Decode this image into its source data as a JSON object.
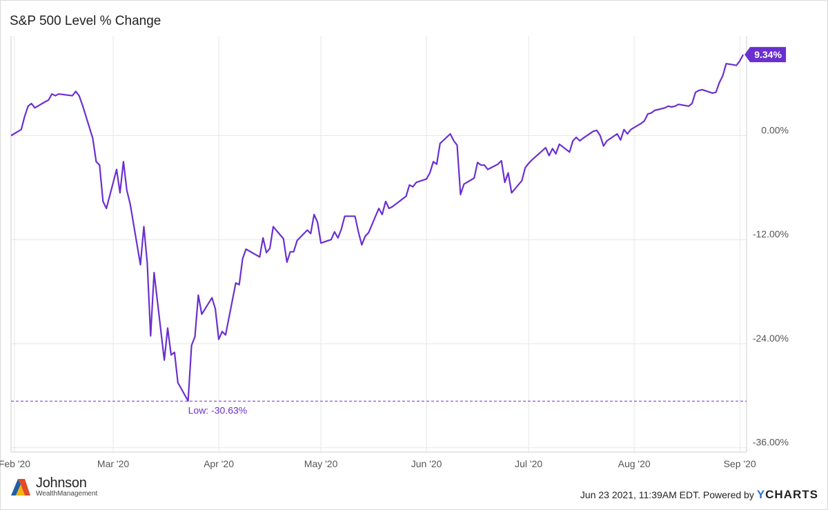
{
  "title": "S&P 500 Level % Change",
  "colors": {
    "line": "#6a2fcf",
    "grid": "#e6e6e6",
    "label_bg": "#6a2fcf"
  },
  "chart_data": {
    "type": "line",
    "title": "S&P 500 Level % Change",
    "xlabel": "",
    "ylabel": "",
    "x_tick_labels": [
      "Feb '20",
      "Mar '20",
      "Apr '20",
      "May '20",
      "Jun '20",
      "Jul '20",
      "Aug '20",
      "Sep '20"
    ],
    "x_ticks": [
      "2020-02-01",
      "2020-03-01",
      "2020-04-01",
      "2020-05-01",
      "2020-06-01",
      "2020-07-01",
      "2020-08-01",
      "2020-09-01"
    ],
    "y_ticks": [
      0,
      -12,
      -24,
      -36
    ],
    "y_tick_labels": [
      "0.00%",
      "-12.00%",
      "-24.00%",
      "-36.00%"
    ],
    "ylim": [
      -36.5,
      11.5
    ],
    "xlim": [
      "2020-01-31",
      "2020-09-03"
    ],
    "grid": true,
    "series": [
      {
        "x": [
          "2020-01-31",
          "2020-02-03",
          "2020-02-04",
          "2020-02-05",
          "2020-02-06",
          "2020-02-07",
          "2020-02-10",
          "2020-02-11",
          "2020-02-12",
          "2020-02-13",
          "2020-02-14",
          "2020-02-18",
          "2020-02-19",
          "2020-02-20",
          "2020-02-21",
          "2020-02-24",
          "2020-02-25",
          "2020-02-26",
          "2020-02-27",
          "2020-02-28",
          "2020-03-02",
          "2020-03-03",
          "2020-03-04",
          "2020-03-05",
          "2020-03-06",
          "2020-03-09",
          "2020-03-10",
          "2020-03-11",
          "2020-03-12",
          "2020-03-13",
          "2020-03-16",
          "2020-03-17",
          "2020-03-18",
          "2020-03-19",
          "2020-03-20",
          "2020-03-23",
          "2020-03-24",
          "2020-03-25",
          "2020-03-26",
          "2020-03-27",
          "2020-03-30",
          "2020-03-31",
          "2020-04-01",
          "2020-04-02",
          "2020-04-03",
          "2020-04-06",
          "2020-04-07",
          "2020-04-08",
          "2020-04-09",
          "2020-04-13",
          "2020-04-14",
          "2020-04-15",
          "2020-04-16",
          "2020-04-17",
          "2020-04-20",
          "2020-04-21",
          "2020-04-22",
          "2020-04-23",
          "2020-04-24",
          "2020-04-27",
          "2020-04-28",
          "2020-04-29",
          "2020-04-30",
          "2020-05-01",
          "2020-05-04",
          "2020-05-05",
          "2020-05-06",
          "2020-05-07",
          "2020-05-08",
          "2020-05-11",
          "2020-05-12",
          "2020-05-13",
          "2020-05-14",
          "2020-05-15",
          "2020-05-18",
          "2020-05-19",
          "2020-05-20",
          "2020-05-21",
          "2020-05-22",
          "2020-05-26",
          "2020-05-27",
          "2020-05-28",
          "2020-05-29",
          "2020-06-01",
          "2020-06-02",
          "2020-06-03",
          "2020-06-04",
          "2020-06-05",
          "2020-06-08",
          "2020-06-09",
          "2020-06-10",
          "2020-06-11",
          "2020-06-12",
          "2020-06-15",
          "2020-06-16",
          "2020-06-17",
          "2020-06-18",
          "2020-06-19",
          "2020-06-22",
          "2020-06-23",
          "2020-06-24",
          "2020-06-25",
          "2020-06-26",
          "2020-06-29",
          "2020-06-30",
          "2020-07-01",
          "2020-07-02",
          "2020-07-06",
          "2020-07-07",
          "2020-07-08",
          "2020-07-09",
          "2020-07-10",
          "2020-07-13",
          "2020-07-14",
          "2020-07-15",
          "2020-07-16",
          "2020-07-17",
          "2020-07-20",
          "2020-07-21",
          "2020-07-22",
          "2020-07-23",
          "2020-07-24",
          "2020-07-27",
          "2020-07-28",
          "2020-07-29",
          "2020-07-30",
          "2020-07-31",
          "2020-08-03",
          "2020-08-04",
          "2020-08-05",
          "2020-08-06",
          "2020-08-07",
          "2020-08-10",
          "2020-08-11",
          "2020-08-12",
          "2020-08-13",
          "2020-08-14",
          "2020-08-17",
          "2020-08-18",
          "2020-08-19",
          "2020-08-20",
          "2020-08-21",
          "2020-08-24",
          "2020-08-25",
          "2020-08-26",
          "2020-08-27",
          "2020-08-28",
          "2020-08-31",
          "2020-09-01",
          "2020-09-02"
        ],
        "y": [
          0.0,
          0.7,
          2.2,
          3.4,
          3.7,
          3.2,
          3.9,
          4.1,
          4.8,
          4.6,
          4.8,
          4.6,
          5.1,
          4.6,
          3.5,
          -0.3,
          -3.0,
          -3.4,
          -7.6,
          -8.4,
          -3.9,
          -6.6,
          -3.0,
          -6.3,
          -7.9,
          -14.9,
          -10.5,
          -14.7,
          -23.1,
          -15.8,
          -25.9,
          -22.2,
          -25.3,
          -25.0,
          -28.5,
          -30.6,
          -24.2,
          -23.2,
          -18.4,
          -20.6,
          -18.7,
          -20.0,
          -23.5,
          -22.6,
          -23.0,
          -17.0,
          -17.2,
          -14.2,
          -13.1,
          -14.0,
          -11.8,
          -13.5,
          -13.0,
          -10.5,
          -11.9,
          -14.6,
          -13.4,
          -13.4,
          -12.1,
          -10.9,
          -11.3,
          -9.1,
          -10.0,
          -12.4,
          -12.0,
          -11.1,
          -11.8,
          -10.8,
          -9.3,
          -9.3,
          -11.1,
          -12.6,
          -11.6,
          -11.2,
          -8.4,
          -9.1,
          -7.6,
          -8.4,
          -8.2,
          -7.0,
          -5.7,
          -5.9,
          -5.4,
          -5.0,
          -4.3,
          -3.0,
          -3.3,
          -0.9,
          0.2,
          -0.6,
          -1.1,
          -6.8,
          -5.6,
          -4.9,
          -3.1,
          -3.4,
          -3.4,
          -3.9,
          -3.3,
          -2.9,
          -5.4,
          -4.3,
          -6.6,
          -5.2,
          -3.7,
          -3.2,
          -2.8,
          -1.4,
          -2.3,
          -1.5,
          -2.1,
          -1.0,
          -1.9,
          -0.6,
          -0.2,
          -0.6,
          -0.3,
          0.5,
          0.6,
          0.0,
          -1.2,
          -0.6,
          0.2,
          -0.5,
          0.7,
          0.2,
          0.7,
          1.4,
          1.7,
          2.5,
          2.6,
          2.9,
          3.2,
          3.4,
          3.3,
          3.4,
          3.6,
          3.4,
          3.7,
          5.0,
          5.2,
          5.3,
          4.9,
          5.0,
          6.1,
          6.9,
          8.3,
          8.1,
          8.6,
          9.34
        ]
      }
    ],
    "annotations": {
      "low_label": "Low: -30.63%",
      "low_value": -30.63,
      "last_label": "9.34%",
      "last_value": 9.34
    }
  },
  "footer": {
    "timestamp": "Jun 23 2021, 11:39AM EDT. Powered by",
    "brand_y": "Y",
    "brand_rest": "CHARTS"
  },
  "logo": {
    "name": "Johnson",
    "sub": "WealthManagement"
  }
}
